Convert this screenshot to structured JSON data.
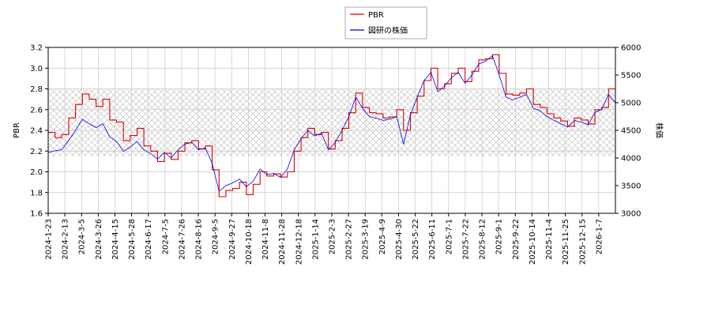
{
  "chart_data": {
    "type": "line",
    "legend_position": "top-center",
    "grid": true,
    "ylabel_left": "PBR",
    "ylabel_right": "株価",
    "ylim_left": [
      1.6,
      3.2
    ],
    "ylim_right": [
      3000,
      6000
    ],
    "yticks_left": [
      "1.6",
      "1.8",
      "2.0",
      "2.2",
      "2.4",
      "2.6",
      "2.8",
      "3.0",
      "3.2"
    ],
    "yticks_right": [
      "3000",
      "3500",
      "4000",
      "4500",
      "5000",
      "5500",
      "6000"
    ],
    "band_pbr": [
      2.15,
      2.8
    ],
    "x_ticks": [
      "2024-1-23",
      "2024-2-13",
      "2024-3-5",
      "2024-3-26",
      "2024-4-15",
      "2024-5-28",
      "2024-6-17",
      "2024-7-5",
      "2024-7-26",
      "2024-8-16",
      "2024-9-5",
      "2024-9-27",
      "2024-10-18",
      "2024-11-8",
      "2024-11-28",
      "2024-12-18",
      "2025-1-14",
      "2025-2-3",
      "2025-2-27",
      "2025-3-19",
      "2025-4-9",
      "2025-4-30",
      "2025-5-22",
      "2025-6-11",
      "2025-7-1",
      "2025-7-22",
      "2025-8-12",
      "2025-9-1",
      "2025-9-22",
      "2025-10-14",
      "2025-11-4",
      "2025-11-25",
      "2025-12-15",
      "2026-1-7"
    ],
    "series": [
      {
        "name": "PBR",
        "axis": "left",
        "color": "#dd0000",
        "values": [
          2.38,
          2.33,
          2.36,
          2.52,
          2.65,
          2.75,
          2.7,
          2.63,
          2.7,
          2.5,
          2.48,
          2.3,
          2.35,
          2.42,
          2.25,
          2.2,
          2.1,
          2.18,
          2.12,
          2.2,
          2.28,
          2.3,
          2.22,
          2.25,
          2.02,
          1.76,
          1.82,
          1.84,
          1.9,
          1.78,
          1.88,
          2.0,
          1.96,
          1.98,
          1.95,
          2.0,
          2.2,
          2.33,
          2.42,
          2.36,
          2.38,
          2.22,
          2.3,
          2.42,
          2.57,
          2.76,
          2.62,
          2.57,
          2.56,
          2.52,
          2.53,
          2.6,
          2.4,
          2.57,
          2.73,
          2.88,
          3.0,
          2.8,
          2.85,
          2.95,
          3.0,
          2.87,
          2.97,
          3.08,
          3.09,
          3.13,
          2.95,
          2.75,
          2.74,
          2.76,
          2.8,
          2.65,
          2.62,
          2.56,
          2.52,
          2.49,
          2.44,
          2.52,
          2.5,
          2.46,
          2.6,
          2.62,
          2.8,
          2.72
        ]
      },
      {
        "name": "図研の株価",
        "axis": "right",
        "color": "#0000dd",
        "values": [
          4100,
          4130,
          4150,
          4320,
          4500,
          4700,
          4620,
          4550,
          4620,
          4380,
          4300,
          4120,
          4200,
          4300,
          4150,
          4080,
          3980,
          4100,
          4000,
          4150,
          4250,
          4280,
          4150,
          4180,
          3900,
          3400,
          3500,
          3550,
          3620,
          3480,
          3580,
          3800,
          3700,
          3720,
          3650,
          3800,
          4150,
          4350,
          4500,
          4400,
          4450,
          4150,
          4280,
          4500,
          4750,
          5100,
          4900,
          4750,
          4720,
          4680,
          4700,
          4750,
          4250,
          4780,
          5100,
          5400,
          5550,
          5200,
          5300,
          5450,
          5550,
          5350,
          5500,
          5700,
          5750,
          5850,
          5500,
          5100,
          5050,
          5100,
          5150,
          4900,
          4850,
          4750,
          4680,
          4620,
          4560,
          4680,
          4650,
          4600,
          4820,
          4880,
          5150,
          5000
        ]
      }
    ]
  }
}
